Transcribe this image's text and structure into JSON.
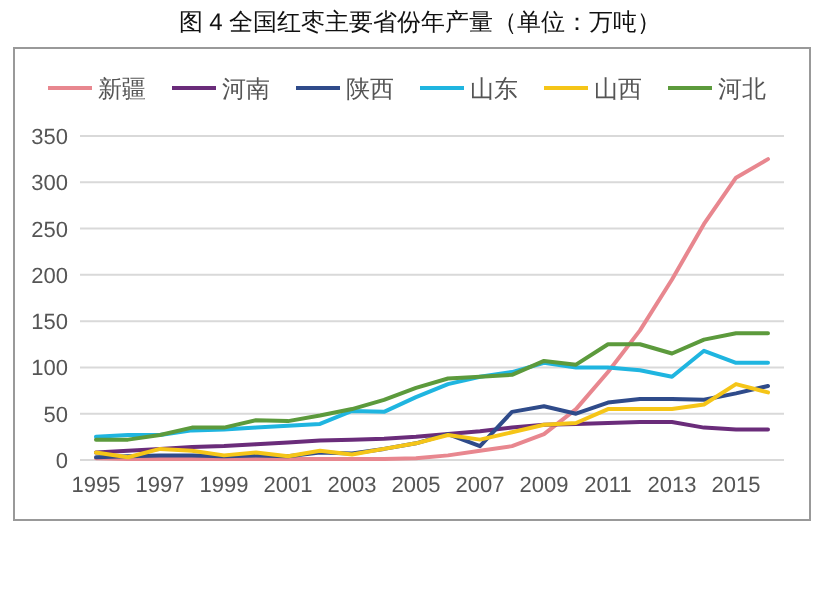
{
  "chart_data": {
    "type": "line",
    "title": "图 4  全国红枣主要省份年产量（单位：万吨）",
    "categories": [
      "1995",
      null,
      "1997",
      null,
      "1999",
      null,
      "2001",
      null,
      "2003",
      null,
      "2005",
      null,
      "2007",
      null,
      "2009",
      null,
      "2011",
      null,
      "2013",
      null,
      "2015",
      null
    ],
    "series": [
      {
        "name": "新疆",
        "color": "#e8878f",
        "values": [
          2,
          1,
          1,
          1,
          1,
          1,
          1,
          1,
          1,
          1,
          2,
          5,
          10,
          15,
          28,
          55,
          95,
          140,
          195,
          255,
          305,
          325
        ]
      },
      {
        "name": "河南",
        "color": "#6a2c7a",
        "values": [
          8,
          10,
          12,
          14,
          15,
          17,
          19,
          21,
          22,
          23,
          25,
          28,
          31,
          35,
          38,
          39,
          40,
          41,
          41,
          35,
          33,
          33
        ]
      },
      {
        "name": "陕西",
        "color": "#2f4b8a",
        "values": [
          3,
          4,
          5,
          5,
          4,
          5,
          4,
          8,
          7,
          12,
          18,
          28,
          15,
          52,
          58,
          50,
          62,
          66,
          66,
          65,
          72,
          80
        ]
      },
      {
        "name": "山东",
        "color": "#1fb5e0",
        "values": [
          25,
          27,
          27,
          32,
          33,
          35,
          37,
          39,
          53,
          52,
          68,
          82,
          90,
          95,
          105,
          100,
          100,
          97,
          90,
          118,
          105,
          105
        ]
      },
      {
        "name": "山西",
        "color": "#f5c518",
        "values": [
          8,
          3,
          12,
          10,
          5,
          8,
          4,
          10,
          6,
          12,
          18,
          27,
          22,
          30,
          38,
          40,
          55,
          55,
          55,
          60,
          82,
          73
        ]
      },
      {
        "name": "河北",
        "color": "#5c9a3c",
        "values": [
          22,
          22,
          27,
          35,
          35,
          43,
          42,
          48,
          55,
          65,
          78,
          88,
          90,
          92,
          107,
          103,
          125,
          125,
          115,
          130,
          137,
          137
        ]
      }
    ],
    "ylim": [
      0,
      350
    ],
    "yticks": [
      0,
      50,
      100,
      150,
      200,
      250,
      300,
      350
    ],
    "grid": "y",
    "legend": "top",
    "marker": "none",
    "line_style": "solid"
  }
}
